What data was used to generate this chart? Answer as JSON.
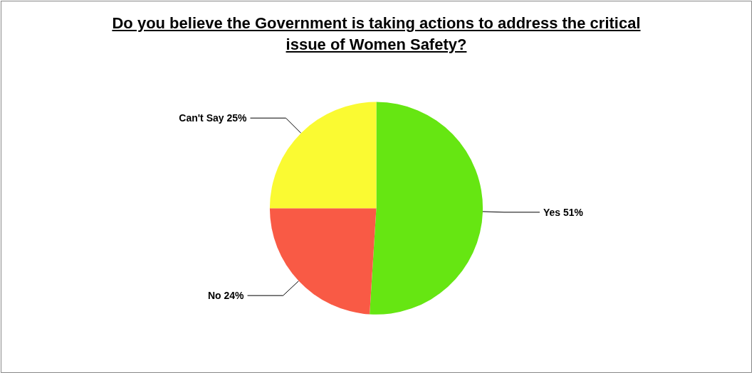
{
  "chart_data": {
    "type": "pie",
    "title": "Do you believe the Government is taking actions to address the critical issue of Women Safety?",
    "categories": [
      "Yes",
      "No",
      "Can't Say"
    ],
    "values": [
      51,
      24,
      25
    ],
    "value_labels": [
      "51%",
      "24%",
      "25%"
    ],
    "colors": [
      "#66e612",
      "#f95a45",
      "#fafa32"
    ],
    "legend": false
  }
}
